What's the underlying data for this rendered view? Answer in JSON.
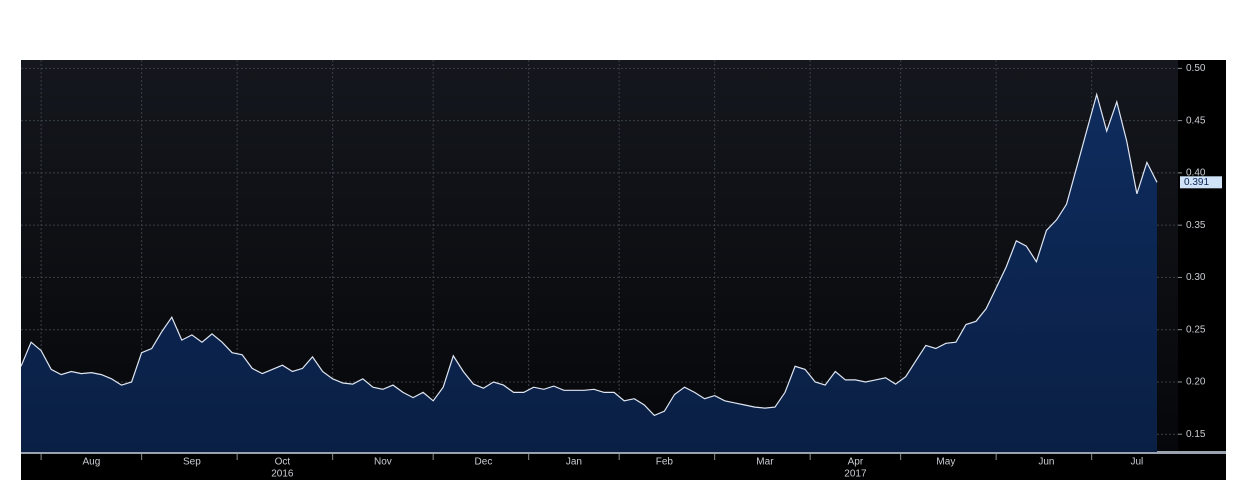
{
  "chart_data": {
    "type": "area",
    "categories": [
      null,
      null,
      null,
      null,
      null,
      null,
      null,
      "Aug",
      null,
      null,
      null,
      null,
      null,
      null,
      null,
      null,
      null,
      "Sep",
      null,
      null,
      null,
      null,
      null,
      null,
      null,
      null,
      "Oct",
      null,
      null,
      null,
      null,
      null,
      null,
      null,
      null,
      null,
      "Nov",
      null,
      null,
      null,
      null,
      null,
      null,
      null,
      null,
      null,
      "Dec",
      null,
      null,
      null,
      null,
      null,
      null,
      null,
      null,
      "Jan",
      null,
      null,
      null,
      null,
      null,
      null,
      null,
      null,
      "Feb",
      null,
      null,
      null,
      null,
      null,
      null,
      null,
      null,
      null,
      "Mar",
      null,
      null,
      null,
      null,
      null,
      null,
      null,
      null,
      "Apr",
      null,
      null,
      null,
      null,
      null,
      null,
      null,
      null,
      "May",
      null,
      null,
      null,
      null,
      null,
      null,
      null,
      null,
      null,
      "Jun",
      null,
      null,
      null,
      null,
      null,
      null,
      null,
      null,
      "Jul",
      null,
      null
    ],
    "years": [
      {
        "label": "2016",
        "at": "Oct"
      },
      {
        "label": "2017",
        "at": "Apr"
      }
    ],
    "series": [
      {
        "color": "#dfe6f2",
        "fill": "#0b2452",
        "values": [
          0.215,
          0.238,
          0.23,
          0.212,
          0.207,
          0.21,
          0.208,
          0.209,
          0.207,
          0.203,
          0.197,
          0.2,
          0.228,
          0.232,
          0.248,
          0.262,
          0.24,
          0.245,
          0.238,
          0.246,
          0.238,
          0.228,
          0.226,
          0.213,
          0.208,
          0.212,
          0.216,
          0.21,
          0.213,
          0.224,
          0.21,
          0.203,
          0.199,
          0.198,
          0.203,
          0.195,
          0.193,
          0.197,
          0.19,
          0.185,
          0.19,
          0.182,
          0.195,
          0.225,
          0.21,
          0.198,
          0.194,
          0.2,
          0.197,
          0.19,
          0.19,
          0.195,
          0.193,
          0.196,
          0.192,
          0.192,
          0.192,
          0.193,
          0.19,
          0.19,
          0.182,
          0.184,
          0.178,
          0.168,
          0.172,
          0.188,
          0.195,
          0.19,
          0.184,
          0.187,
          0.182,
          0.18,
          0.178,
          0.176,
          0.175,
          0.176,
          0.19,
          0.215,
          0.212,
          0.2,
          0.197,
          0.21,
          0.202,
          0.202,
          0.2,
          0.202,
          0.204,
          0.198,
          0.205,
          0.22,
          0.235,
          0.232,
          0.237,
          0.238,
          0.255,
          0.258,
          0.27,
          0.29,
          0.31,
          0.335,
          0.33,
          0.315,
          0.345,
          0.355,
          0.37,
          0.405,
          0.44,
          0.475,
          0.44,
          0.468,
          0.43,
          0.38,
          0.41,
          0.391
        ]
      }
    ],
    "last_value_label": "0.391",
    "ylim": [
      0.133,
      0.508
    ],
    "yticks": [
      0.15,
      {
        "value": 0.2,
        "label": "0.20"
      },
      0.25,
      {
        "value": 0.3,
        "label": "0.30"
      },
      0.35,
      {
        "value": 0.4,
        "label": "0.40"
      },
      0.45,
      {
        "value": 0.5,
        "label": "0.50"
      }
    ],
    "grid": true
  }
}
